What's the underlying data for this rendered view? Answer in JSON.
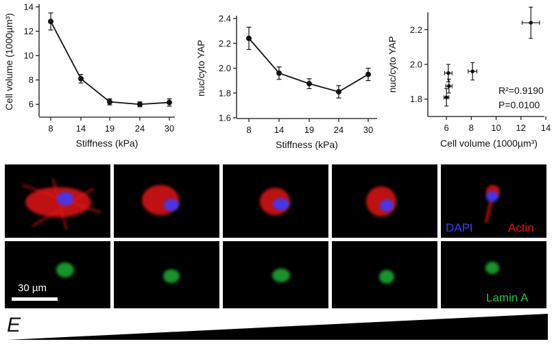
{
  "chart_data": [
    {
      "type": "line",
      "xlabel": "Stiffness (kPa)",
      "ylabel": "Cell volume (1000µm³)",
      "categories": [
        "8",
        "14",
        "19",
        "24",
        "30"
      ],
      "values": [
        12.8,
        8.1,
        6.2,
        6.0,
        6.15
      ],
      "errors": [
        0.7,
        0.35,
        0.25,
        0.2,
        0.3
      ],
      "yticks": [
        "6",
        "8",
        "10",
        "12",
        "14"
      ],
      "ylim": [
        5,
        14
      ]
    },
    {
      "type": "line",
      "xlabel": "Stiffness (kPa)",
      "ylabel": "nuc/cyto YAP",
      "categories": [
        "8",
        "14",
        "19",
        "24",
        "30"
      ],
      "values": [
        2.24,
        1.96,
        1.875,
        1.81,
        1.95
      ],
      "errors": [
        0.09,
        0.05,
        0.04,
        0.05,
        0.05
      ],
      "yticks": [
        "1.6",
        "1.8",
        "2.0",
        "2.2",
        "2.4"
      ],
      "ylim": [
        1.6,
        2.4
      ]
    },
    {
      "type": "scatter",
      "xlabel": "Cell volume (1000µm³)",
      "ylabel": "nuc/cyto YAP",
      "points": [
        {
          "x": 12.8,
          "y": 2.24,
          "xerr": 0.7,
          "yerr": 0.09
        },
        {
          "x": 8.1,
          "y": 1.96,
          "xerr": 0.35,
          "yerr": 0.05
        },
        {
          "x": 6.2,
          "y": 1.875,
          "xerr": 0.25,
          "yerr": 0.04
        },
        {
          "x": 6.0,
          "y": 1.81,
          "xerr": 0.2,
          "yerr": 0.05
        },
        {
          "x": 6.15,
          "y": 1.95,
          "xerr": 0.3,
          "yerr": 0.05
        }
      ],
      "xticks": [
        "6",
        "8",
        "10",
        "12",
        "14"
      ],
      "yticks": [
        "1.8",
        "2.0",
        "2.2"
      ],
      "xlim": [
        4.5,
        14
      ],
      "ylim": [
        1.7,
        2.3
      ],
      "annotations": [
        "R²=0.9190",
        "P=0.0100"
      ]
    }
  ],
  "micrographs": {
    "overlay_labels": {
      "dapi": "DAPI",
      "actin": "Actin",
      "lamin": "Lamin A"
    },
    "scale_bar_label": "30 µm",
    "gradient_label": "E",
    "colors": {
      "dapi": "#3b3bff",
      "actin": "#e01515",
      "lamin": "#22c43a",
      "panel_bg": "#000000"
    }
  }
}
